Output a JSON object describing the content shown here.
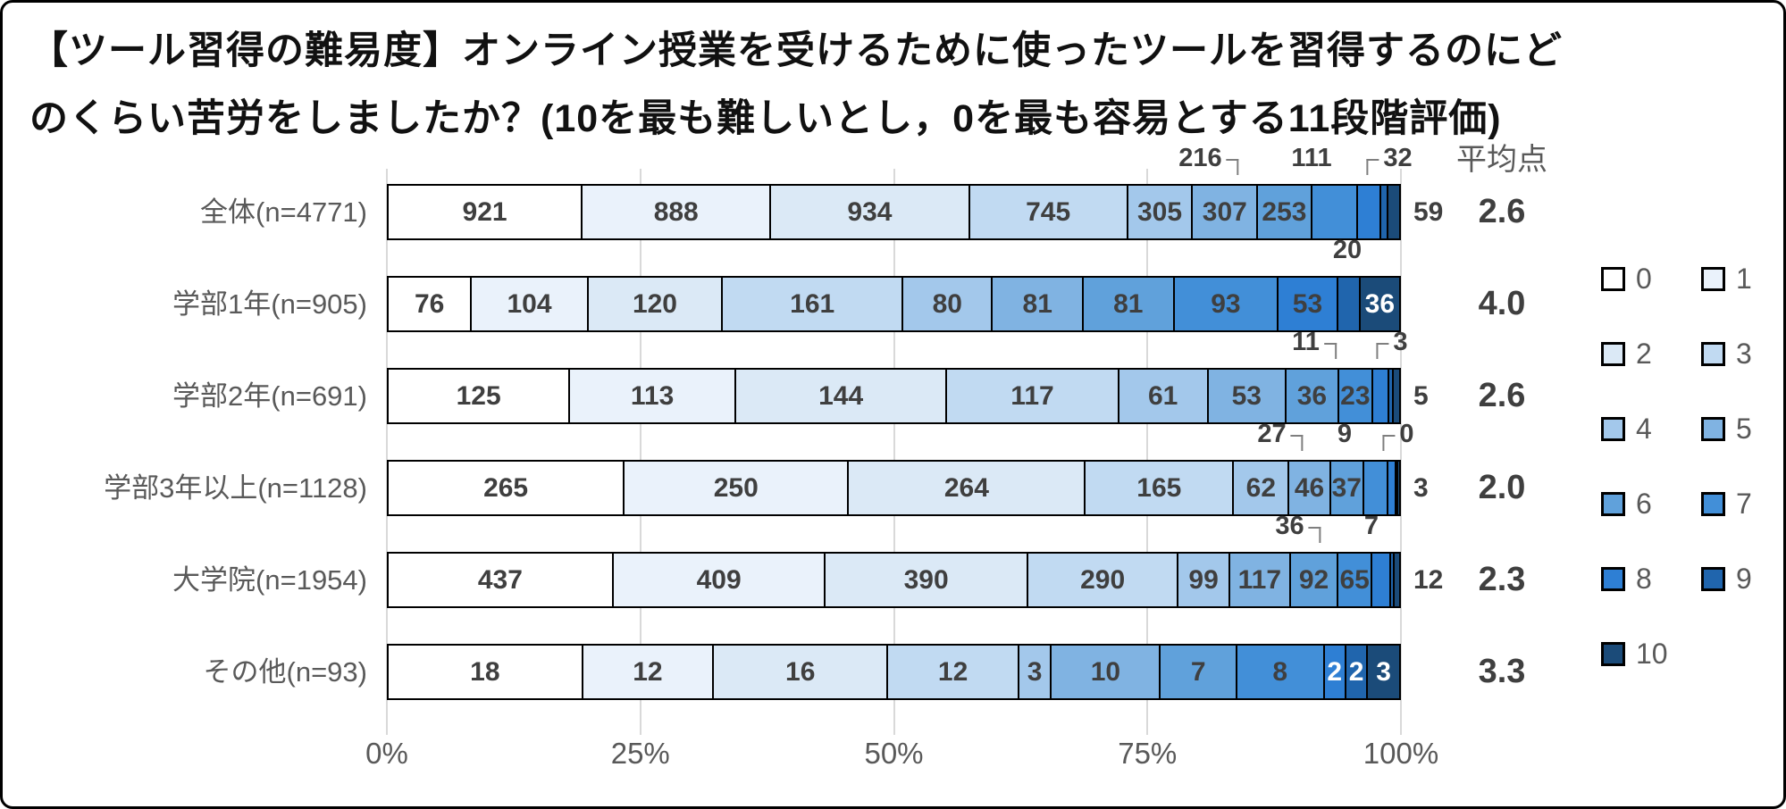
{
  "title": {
    "line1": "【ツール習得の難易度】オンライン授業を受けるために使ったツールを習得するのにど",
    "line2": "のくらい苦労をしましたか？(10を最も難しいとし，0を最も容易とする11段階評価)"
  },
  "mean_header": "平均点",
  "x_axis": {
    "ticks": [
      "0%",
      "25%",
      "50%",
      "75%",
      "100%"
    ],
    "range_percent": [
      0,
      100
    ]
  },
  "colors": {
    "scale": [
      "#FFFFFF",
      "#EAF2FB",
      "#DBE9F6",
      "#C1DAF2",
      "#A3C8EB",
      "#80B3E2",
      "#60A1DB",
      "#428FD8",
      "#2E7FD4",
      "#2065AD",
      "#1B4B79"
    ],
    "grid": "#D9D9D9",
    "axis_text": "#595959",
    "label_dark": "#3F3F3F",
    "label_white": "#FFFFFF",
    "leader": "#7F7F7F",
    "bar_border": "#000000",
    "figure_border": "#000000"
  },
  "chart_data": {
    "type": "bar",
    "stacked": true,
    "orientation": "horizontal",
    "title": "【ツール習得の難易度】オンライン授業を受けるために使ったツールを習得するのにどのくらい苦労をしましたか？(10を最も難しいとし，0を最も容易とする11段階評価)",
    "categories": [
      "0",
      "1",
      "2",
      "3",
      "4",
      "5",
      "6",
      "7",
      "8",
      "9",
      "10"
    ],
    "legend_position": "right",
    "x_tick_labels": [
      "0%",
      "25%",
      "50%",
      "75%",
      "100%"
    ],
    "mean_column_header": "平均点",
    "rows": [
      {
        "label": "全体(n=4771)",
        "values": [
          921,
          888,
          934,
          745,
          305,
          307,
          253,
          216,
          111,
          32,
          59
        ],
        "mean": "2.6"
      },
      {
        "label": "学部1年(n=905)",
        "values": [
          76,
          104,
          120,
          161,
          80,
          81,
          81,
          93,
          53,
          20,
          36
        ],
        "mean": "4.0"
      },
      {
        "label": "学部2年(n=691)",
        "values": [
          125,
          113,
          144,
          117,
          61,
          53,
          36,
          23,
          11,
          3,
          5
        ],
        "mean": "2.6"
      },
      {
        "label": "学部3年以上(n=1128)",
        "values": [
          265,
          250,
          264,
          165,
          62,
          46,
          37,
          27,
          9,
          0,
          3
        ],
        "mean": "2.0"
      },
      {
        "label": "大学院(n=1954)",
        "values": [
          437,
          409,
          390,
          290,
          99,
          117,
          92,
          65,
          36,
          7,
          12
        ],
        "mean": "2.3"
      },
      {
        "label": "その他(n=93)",
        "values": [
          18,
          12,
          16,
          12,
          3,
          10,
          7,
          8,
          2,
          2,
          3
        ],
        "mean": "3.3"
      }
    ]
  }
}
